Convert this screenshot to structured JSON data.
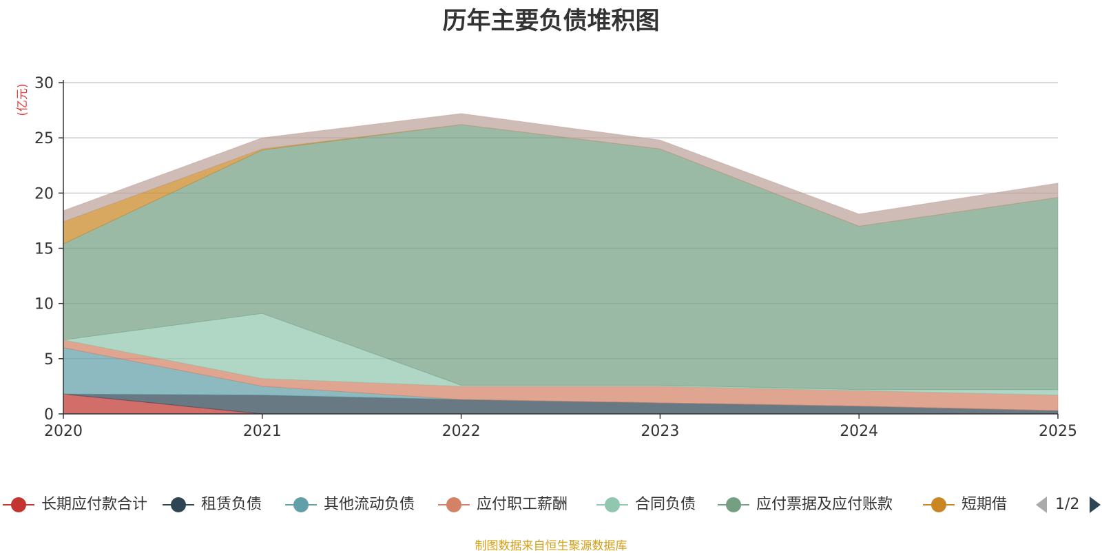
{
  "chart_data": {
    "type": "area",
    "title": "历年主要负债堆积图",
    "ylabel": "(亿元)",
    "categories": [
      "2020",
      "2021",
      "2022",
      "2023",
      "2024",
      "2025"
    ],
    "ylim": [
      0,
      30
    ],
    "yticks": [
      0,
      5,
      10,
      15,
      20,
      25,
      30
    ],
    "grid": true,
    "stacked": true,
    "legend_position": "bottom",
    "series": [
      {
        "name": "长期应付款合计",
        "color": "#c23531",
        "values": [
          1.8,
          0.0,
          0.0,
          0.0,
          0.0,
          0.0
        ]
      },
      {
        "name": "租赁负债",
        "color": "#2f4554",
        "values": [
          0.0,
          1.7,
          1.3,
          1.0,
          0.7,
          0.3
        ]
      },
      {
        "name": "其他流动负债",
        "color": "#61a0a8",
        "values": [
          4.2,
          0.8,
          0.0,
          0.0,
          0.0,
          0.0
        ]
      },
      {
        "name": "应付职工薪酬",
        "color": "#d48265",
        "values": [
          0.7,
          0.7,
          1.2,
          1.5,
          1.4,
          1.4
        ]
      },
      {
        "name": "合同负债",
        "color": "#91c7ae",
        "values": [
          0.0,
          5.9,
          0.1,
          0.1,
          0.1,
          0.5
        ]
      },
      {
        "name": "应付票据及应付账款",
        "color": "#749f83",
        "values": [
          8.7,
          14.8,
          23.6,
          21.4,
          14.8,
          17.4
        ]
      },
      {
        "name": "短期借款",
        "color": "#ca8622",
        "values": [
          2.0,
          0.1,
          0.0,
          0.0,
          0.0,
          0.0
        ]
      },
      {
        "name": "",
        "color": "#bda29a",
        "values": [
          1.0,
          1.0,
          1.0,
          0.8,
          1.1,
          1.3
        ]
      }
    ]
  },
  "legend": {
    "items": [
      {
        "label": "长期应付款合计",
        "color": "#c23531"
      },
      {
        "label": "租赁负债",
        "color": "#2f4554"
      },
      {
        "label": "其他流动负债",
        "color": "#61a0a8"
      },
      {
        "label": "应付职工薪酬",
        "color": "#d48265"
      },
      {
        "label": "合同负债",
        "color": "#91c7ae"
      },
      {
        "label": "应付票据及应付账款",
        "color": "#749f83"
      },
      {
        "label": "短期借",
        "color": "#ca8622"
      }
    ],
    "page": "1/2"
  },
  "source_note": "制图数据来自恒生聚源数据库"
}
